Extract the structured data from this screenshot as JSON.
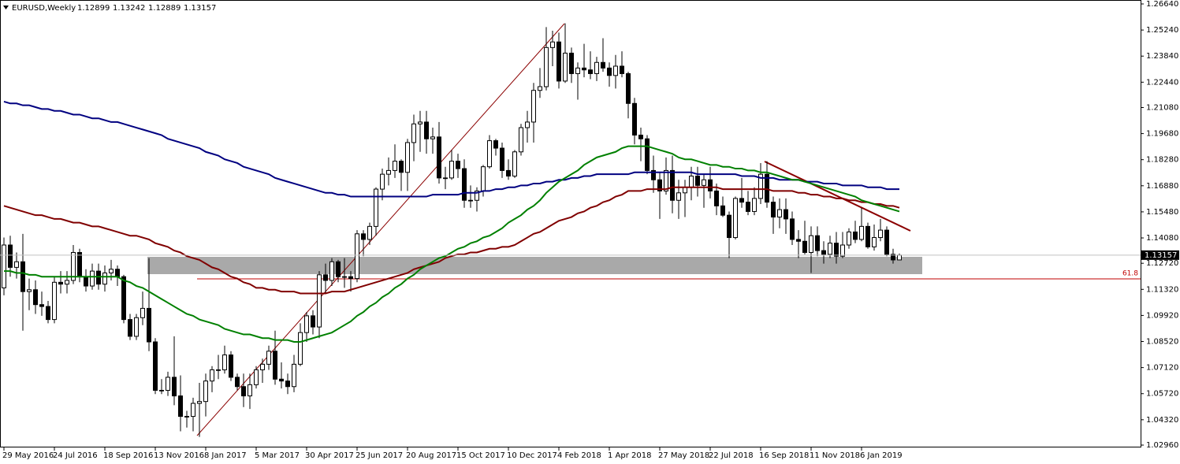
{
  "chart_data": {
    "type": "candlestick",
    "title": "EURUSD,Weekly",
    "categories": [
      "29 May 2016",
      null,
      null,
      null,
      null,
      null,
      null,
      null,
      "24 Jul 2016",
      null,
      null,
      null,
      null,
      null,
      null,
      null,
      "18 Sep 2016",
      null,
      null,
      null,
      null,
      null,
      null,
      null,
      "13 Nov 2016",
      null,
      null,
      null,
      null,
      null,
      null,
      null,
      "8 Jan 2017",
      null,
      null,
      null,
      null,
      null,
      null,
      null,
      "5 Mar 2017",
      null,
      null,
      null,
      null,
      null,
      null,
      null,
      "30 Apr 2017",
      null,
      null,
      null,
      null,
      null,
      null,
      null,
      "25 Jun 2017",
      null,
      null,
      null,
      null,
      null,
      null,
      null,
      "20 Aug 2017",
      null,
      null,
      null,
      null,
      null,
      null,
      null,
      "15 Oct 2017",
      null,
      null,
      null,
      null,
      null,
      null,
      null,
      "10 Dec 2017",
      null,
      null,
      null,
      null,
      null,
      null,
      null,
      "4 Feb 2018",
      null,
      null,
      null,
      null,
      null,
      null,
      null,
      "1 Apr 2018",
      null,
      null,
      null,
      null,
      null,
      null,
      null,
      "27 May 2018",
      null,
      null,
      null,
      null,
      null,
      null,
      null,
      "22 Jul 2018",
      null,
      null,
      null,
      null,
      null,
      null,
      null,
      "16 Sep 2018",
      null,
      null,
      null,
      null,
      null,
      null,
      null,
      "11 Nov 2018",
      null,
      null,
      null,
      null,
      null,
      null,
      null,
      "6 Jan 2019",
      null,
      null,
      null,
      null,
      null,
      null
    ],
    "open": [
      1.114,
      1.137,
      1.125,
      1.128,
      1.112,
      1.113,
      1.105,
      1.104,
      1.097,
      1.117,
      1.116,
      1.118,
      1.133,
      1.12,
      1.115,
      1.123,
      1.116,
      1.122,
      1.124,
      1.12,
      1.097,
      1.088,
      1.098,
      1.103,
      1.085,
      1.059,
      1.059,
      1.066,
      1.056,
      1.045,
      1.045,
      1.052,
      1.053,
      1.064,
      1.07,
      1.07,
      1.078,
      1.066,
      1.061,
      1.056,
      1.062,
      1.07,
      1.073,
      1.08,
      1.065,
      1.064,
      1.061,
      1.073,
      1.09,
      1.099,
      1.093,
      1.121,
      1.118,
      1.128,
      1.12,
      1.12,
      1.119,
      1.143,
      1.14,
      1.147,
      1.167,
      1.175,
      1.177,
      1.182,
      1.176,
      1.192,
      1.202,
      1.203,
      1.194,
      1.195,
      1.173,
      1.173,
      1.182,
      1.178,
      1.161,
      1.161,
      1.166,
      1.179,
      1.193,
      1.189,
      1.177,
      1.174,
      1.187,
      1.2,
      1.203,
      1.22,
      1.222,
      1.243,
      1.246,
      1.225,
      1.24,
      1.229,
      1.232,
      1.231,
      1.229,
      1.235,
      1.232,
      1.228,
      1.233,
      1.229,
      1.213,
      1.196,
      1.194,
      1.177,
      1.172,
      1.166,
      1.177,
      1.161,
      1.165,
      1.168,
      1.174,
      1.169,
      1.172,
      1.166,
      1.158,
      1.153,
      1.141,
      1.162,
      1.16,
      1.155,
      1.162,
      1.175,
      1.16,
      1.152,
      1.156,
      1.151,
      1.14,
      1.139,
      1.133,
      1.142,
      1.134,
      1.132,
      1.138,
      1.131,
      1.137,
      1.144,
      1.14,
      1.147,
      1.136,
      1.141,
      1.145,
      1.132,
      1.12899
    ],
    "high": [
      1.141,
      1.142,
      1.133,
      1.143,
      1.119,
      1.118,
      1.112,
      1.107,
      1.12,
      1.123,
      1.123,
      1.137,
      1.135,
      1.124,
      1.127,
      1.127,
      1.126,
      1.129,
      1.126,
      1.121,
      1.1,
      1.1,
      1.112,
      1.13,
      1.087,
      1.065,
      1.069,
      1.088,
      1.067,
      1.048,
      1.055,
      1.063,
      1.068,
      1.072,
      1.078,
      1.083,
      1.08,
      1.068,
      1.068,
      1.068,
      1.072,
      1.076,
      1.083,
      1.091,
      1.074,
      1.068,
      1.078,
      1.095,
      1.101,
      1.102,
      1.123,
      1.127,
      1.13,
      1.129,
      1.13,
      1.123,
      1.145,
      1.145,
      1.149,
      1.168,
      1.178,
      1.184,
      1.191,
      1.183,
      1.194,
      1.207,
      1.209,
      1.209,
      1.2,
      1.203,
      1.179,
      1.188,
      1.186,
      1.183,
      1.169,
      1.168,
      1.18,
      1.196,
      1.194,
      1.192,
      1.183,
      1.188,
      1.202,
      1.209,
      1.224,
      1.232,
      1.254,
      1.252,
      1.251,
      1.256,
      1.243,
      1.235,
      1.245,
      1.241,
      1.238,
      1.248,
      1.235,
      1.239,
      1.241,
      1.23,
      1.216,
      1.2,
      1.196,
      1.185,
      1.176,
      1.184,
      1.185,
      1.172,
      1.172,
      1.179,
      1.179,
      1.175,
      1.179,
      1.17,
      1.163,
      1.155,
      1.163,
      1.173,
      1.166,
      1.168,
      1.181,
      1.182,
      1.163,
      1.162,
      1.162,
      1.155,
      1.145,
      1.15,
      1.147,
      1.147,
      1.139,
      1.142,
      1.144,
      1.144,
      1.146,
      1.15,
      1.157,
      1.149,
      1.148,
      1.151,
      1.147,
      1.135,
      1.13242
    ],
    "low": [
      1.11,
      1.12,
      1.119,
      1.091,
      1.102,
      1.1,
      1.099,
      1.095,
      1.095,
      1.111,
      1.111,
      1.116,
      1.117,
      1.112,
      1.113,
      1.113,
      1.112,
      1.118,
      1.115,
      1.095,
      1.086,
      1.086,
      1.094,
      1.08,
      1.057,
      1.057,
      1.056,
      1.051,
      1.037,
      1.039,
      1.037,
      1.034,
      1.045,
      1.058,
      1.065,
      1.068,
      1.064,
      1.059,
      1.05,
      1.049,
      1.06,
      1.063,
      1.07,
      1.062,
      1.06,
      1.057,
      1.058,
      1.072,
      1.085,
      1.089,
      1.087,
      1.111,
      1.115,
      1.117,
      1.114,
      1.112,
      1.117,
      1.131,
      1.137,
      1.142,
      1.161,
      1.169,
      1.173,
      1.166,
      1.166,
      1.182,
      1.187,
      1.186,
      1.186,
      1.17,
      1.167,
      1.172,
      1.173,
      1.157,
      1.157,
      1.155,
      1.163,
      1.178,
      1.185,
      1.173,
      1.172,
      1.173,
      1.185,
      1.192,
      1.192,
      1.216,
      1.22,
      1.233,
      1.221,
      1.224,
      1.224,
      1.215,
      1.227,
      1.226,
      1.225,
      1.23,
      1.222,
      1.221,
      1.227,
      1.205,
      1.191,
      1.182,
      1.175,
      1.165,
      1.151,
      1.164,
      1.154,
      1.151,
      1.152,
      1.161,
      1.163,
      1.157,
      1.162,
      1.153,
      1.152,
      1.13,
      1.14,
      1.157,
      1.153,
      1.153,
      1.159,
      1.157,
      1.143,
      1.146,
      1.143,
      1.137,
      1.13,
      1.132,
      1.122,
      1.131,
      1.127,
      1.13,
      1.127,
      1.13,
      1.135,
      1.138,
      1.139,
      1.135,
      1.134,
      1.139,
      1.131,
      1.127,
      1.12889
    ],
    "close": [
      1.137,
      1.125,
      1.128,
      1.112,
      1.113,
      1.105,
      1.104,
      1.097,
      1.117,
      1.116,
      1.118,
      1.133,
      1.12,
      1.115,
      1.123,
      1.116,
      1.122,
      1.124,
      1.12,
      1.097,
      1.088,
      1.098,
      1.103,
      1.085,
      1.059,
      1.059,
      1.066,
      1.056,
      1.045,
      1.045,
      1.052,
      1.053,
      1.064,
      1.07,
      1.07,
      1.078,
      1.066,
      1.061,
      1.056,
      1.062,
      1.07,
      1.073,
      1.08,
      1.065,
      1.064,
      1.061,
      1.073,
      1.09,
      1.099,
      1.093,
      1.121,
      1.118,
      1.128,
      1.12,
      1.12,
      1.119,
      1.143,
      1.14,
      1.147,
      1.167,
      1.175,
      1.177,
      1.182,
      1.176,
      1.192,
      1.202,
      1.203,
      1.194,
      1.195,
      1.173,
      1.173,
      1.182,
      1.178,
      1.161,
      1.161,
      1.166,
      1.179,
      1.193,
      1.189,
      1.177,
      1.174,
      1.187,
      1.2,
      1.203,
      1.22,
      1.222,
      1.243,
      1.246,
      1.225,
      1.24,
      1.229,
      1.232,
      1.231,
      1.229,
      1.235,
      1.232,
      1.228,
      1.233,
      1.229,
      1.213,
      1.196,
      1.194,
      1.177,
      1.172,
      1.166,
      1.177,
      1.161,
      1.165,
      1.168,
      1.174,
      1.169,
      1.172,
      1.166,
      1.158,
      1.153,
      1.141,
      1.162,
      1.16,
      1.155,
      1.162,
      1.175,
      1.16,
      1.152,
      1.156,
      1.151,
      1.14,
      1.139,
      1.133,
      1.142,
      1.134,
      1.132,
      1.138,
      1.131,
      1.137,
      1.144,
      1.14,
      1.147,
      1.136,
      1.141,
      1.145,
      1.132,
      1.129,
      1.13157
    ],
    "lines": [
      {
        "color": "#000080",
        "values": [
          1.214,
          1.213,
          1.213,
          1.212,
          1.212,
          1.211,
          1.21,
          1.21,
          1.209,
          1.209,
          1.208,
          1.207,
          1.207,
          1.206,
          1.205,
          1.205,
          1.204,
          1.203,
          1.203,
          1.202,
          1.201,
          1.2,
          1.199,
          1.198,
          1.197,
          1.196,
          1.194,
          1.193,
          1.192,
          1.191,
          1.19,
          1.189,
          1.187,
          1.186,
          1.185,
          1.183,
          1.182,
          1.181,
          1.179,
          1.178,
          1.177,
          1.176,
          1.175,
          1.173,
          1.172,
          1.171,
          1.17,
          1.169,
          1.168,
          1.167,
          1.166,
          1.165,
          1.165,
          1.164,
          1.164,
          1.163,
          1.163,
          1.163,
          1.163,
          1.163,
          1.163,
          1.163,
          1.163,
          1.163,
          1.163,
          1.163,
          1.163,
          1.163,
          1.164,
          1.164,
          1.164,
          1.164,
          1.164,
          1.165,
          1.165,
          1.165,
          1.166,
          1.166,
          1.167,
          1.167,
          1.168,
          1.168,
          1.169,
          1.169,
          1.17,
          1.17,
          1.171,
          1.171,
          1.172,
          1.172,
          1.173,
          1.173,
          1.174,
          1.174,
          1.175,
          1.175,
          1.175,
          1.175,
          1.175,
          1.175,
          1.176,
          1.176,
          1.176,
          1.176,
          1.176,
          1.176,
          1.176,
          1.176,
          1.176,
          1.176,
          1.175,
          1.175,
          1.175,
          1.175,
          1.175,
          1.175,
          1.175,
          1.174,
          1.174,
          1.174,
          1.173,
          1.173,
          1.173,
          1.172,
          1.172,
          1.172,
          1.172,
          1.171,
          1.171,
          1.171,
          1.17,
          1.17,
          1.17,
          1.169,
          1.169,
          1.169,
          1.169,
          1.168,
          1.168,
          1.168,
          1.167,
          1.167,
          1.167
        ]
      },
      {
        "color": "#800000",
        "values": [
          1.158,
          1.157,
          1.156,
          1.155,
          1.154,
          1.153,
          1.153,
          1.152,
          1.151,
          1.151,
          1.15,
          1.149,
          1.149,
          1.148,
          1.147,
          1.147,
          1.146,
          1.145,
          1.144,
          1.143,
          1.142,
          1.142,
          1.141,
          1.14,
          1.138,
          1.137,
          1.136,
          1.134,
          1.133,
          1.131,
          1.13,
          1.129,
          1.127,
          1.125,
          1.124,
          1.122,
          1.12,
          1.119,
          1.117,
          1.116,
          1.114,
          1.114,
          1.113,
          1.113,
          1.112,
          1.112,
          1.112,
          1.111,
          1.111,
          1.111,
          1.111,
          1.111,
          1.112,
          1.112,
          1.112,
          1.113,
          1.114,
          1.115,
          1.116,
          1.117,
          1.118,
          1.119,
          1.12,
          1.121,
          1.122,
          1.124,
          1.125,
          1.126,
          1.127,
          1.128,
          1.13,
          1.131,
          1.132,
          1.132,
          1.133,
          1.133,
          1.134,
          1.135,
          1.135,
          1.136,
          1.136,
          1.137,
          1.139,
          1.141,
          1.143,
          1.144,
          1.146,
          1.148,
          1.15,
          1.151,
          1.152,
          1.154,
          1.155,
          1.157,
          1.158,
          1.16,
          1.161,
          1.163,
          1.164,
          1.166,
          1.166,
          1.166,
          1.167,
          1.167,
          1.167,
          1.167,
          1.168,
          1.168,
          1.168,
          1.168,
          1.168,
          1.168,
          1.168,
          1.168,
          1.167,
          1.167,
          1.167,
          1.167,
          1.167,
          1.167,
          1.167,
          1.167,
          1.166,
          1.166,
          1.166,
          1.166,
          1.165,
          1.165,
          1.164,
          1.164,
          1.163,
          1.163,
          1.162,
          1.162,
          1.161,
          1.161,
          1.16,
          1.16,
          1.159,
          1.159,
          1.158,
          1.158,
          1.157
        ]
      },
      {
        "color": "#008000",
        "values": [
          1.123,
          1.123,
          1.122,
          1.122,
          1.121,
          1.121,
          1.12,
          1.12,
          1.12,
          1.12,
          1.12,
          1.12,
          1.12,
          1.12,
          1.12,
          1.12,
          1.12,
          1.12,
          1.12,
          1.118,
          1.117,
          1.115,
          1.114,
          1.112,
          1.11,
          1.108,
          1.106,
          1.104,
          1.102,
          1.1,
          1.099,
          1.097,
          1.096,
          1.095,
          1.094,
          1.092,
          1.091,
          1.09,
          1.089,
          1.089,
          1.088,
          1.087,
          1.087,
          1.086,
          1.086,
          1.086,
          1.085,
          1.085,
          1.086,
          1.087,
          1.088,
          1.089,
          1.09,
          1.092,
          1.094,
          1.096,
          1.099,
          1.101,
          1.104,
          1.106,
          1.109,
          1.111,
          1.114,
          1.116,
          1.119,
          1.121,
          1.124,
          1.126,
          1.128,
          1.13,
          1.131,
          1.133,
          1.135,
          1.136,
          1.138,
          1.139,
          1.141,
          1.142,
          1.144,
          1.146,
          1.149,
          1.151,
          1.153,
          1.156,
          1.158,
          1.161,
          1.165,
          1.168,
          1.171,
          1.173,
          1.175,
          1.177,
          1.18,
          1.182,
          1.184,
          1.185,
          1.186,
          1.187,
          1.189,
          1.19,
          1.19,
          1.19,
          1.19,
          1.189,
          1.188,
          1.187,
          1.186,
          1.184,
          1.183,
          1.183,
          1.182,
          1.181,
          1.18,
          1.18,
          1.179,
          1.179,
          1.178,
          1.178,
          1.177,
          1.177,
          1.176,
          1.176,
          1.175,
          1.174,
          1.173,
          1.172,
          1.172,
          1.171,
          1.17,
          1.169,
          1.168,
          1.167,
          1.166,
          1.165,
          1.164,
          1.163,
          1.161,
          1.16,
          1.159,
          1.158,
          1.157,
          1.156,
          1.155
        ]
      }
    ],
    "fib_level": {
      "value": 1.1188,
      "label": "61.8",
      "color": "#c00000"
    },
    "ylim": [
      1.0296,
      1.2664
    ],
    "yticks": [
      {
        "value": 1.2664,
        "label": "1.26640"
      },
      {
        "value": 1.2524,
        "label": "1.25240"
      },
      {
        "value": 1.2384,
        "label": "1.23840"
      },
      {
        "value": 1.2244,
        "label": "1.22440"
      },
      {
        "value": 1.2108,
        "label": "1.21080"
      },
      {
        "value": 1.1968,
        "label": "1.19680"
      },
      {
        "value": 1.1828,
        "label": "1.18280"
      },
      {
        "value": 1.1688,
        "label": "1.16880"
      },
      {
        "value": 1.1548,
        "label": "1.15480"
      },
      {
        "value": 1.1408,
        "label": "1.14080"
      },
      {
        "value": 1.1272,
        "label": "1.12720"
      },
      {
        "value": 1.1132,
        "label": "1.11320"
      },
      {
        "value": 1.0992,
        "label": "1.09920"
      },
      {
        "value": 1.0852,
        "label": "1.08520"
      },
      {
        "value": 1.0712,
        "label": "1.07120"
      },
      {
        "value": 1.0572,
        "label": "1.05720"
      },
      {
        "value": 1.0432,
        "label": "1.04320"
      },
      {
        "value": 1.0296,
        "label": "1.02960"
      }
    ]
  }
}
